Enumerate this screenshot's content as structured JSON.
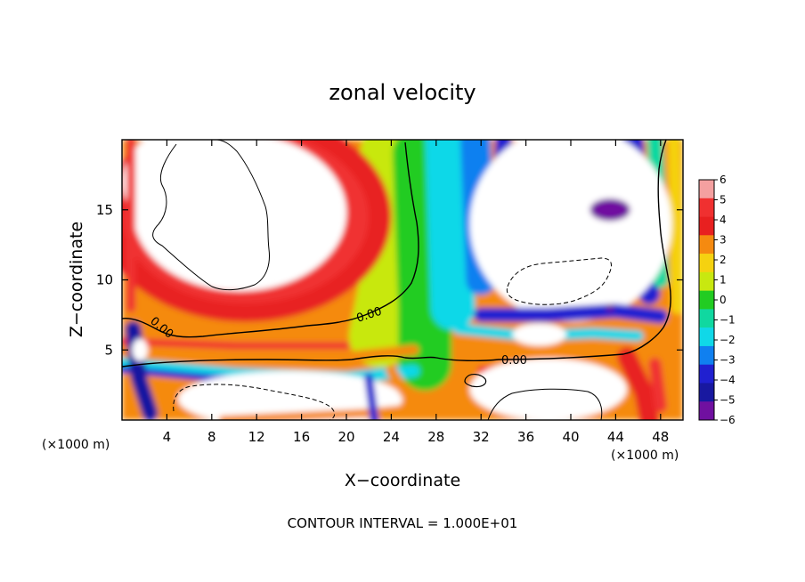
{
  "chart_data": {
    "type": "heatmap",
    "title": "zonal velocity",
    "xlabel": "X−coordinate",
    "ylabel": "Z−coordinate",
    "x_unit_label": "(×1000 m)",
    "x_unit_label_right": "(×1000 m)",
    "xlim": [
      0,
      50
    ],
    "ylim": [
      0,
      20
    ],
    "x_ticks": [
      4,
      8,
      12,
      16,
      20,
      24,
      28,
      32,
      36,
      40,
      44,
      48
    ],
    "x_tick_labels": [
      "4",
      "8",
      "12",
      "16",
      "20",
      "24",
      "28",
      "32",
      "36",
      "40",
      "44",
      "48"
    ],
    "y_ticks": [
      5,
      10,
      15
    ],
    "y_tick_labels": [
      "5",
      "10",
      "15"
    ],
    "colorbar": {
      "min": -6,
      "max": 6,
      "levels": [
        6,
        5,
        4,
        3,
        2,
        1,
        0,
        -1,
        -2,
        -3,
        -4,
        -5,
        -6
      ],
      "tick_labels": [
        "6",
        "5",
        "4",
        "3",
        "2",
        "1",
        "0",
        "−1",
        "−2",
        "−3",
        "−4",
        "−5",
        "−6"
      ],
      "colors": [
        "#f4a0a0",
        "#f03030",
        "#e82020",
        "#f58a10",
        "#f5d210",
        "#c8e810",
        "#22cc22",
        "#10d8a0",
        "#10d8e8",
        "#1080f0",
        "#2020d0",
        "#1818a0",
        "#7010a0"
      ],
      "over_range_color": "#ffffff"
    },
    "contour_labels": [
      "0.00",
      "0.00",
      "0.00"
    ],
    "footer": "CONTOUR INTERVAL = 1.000E+01"
  }
}
